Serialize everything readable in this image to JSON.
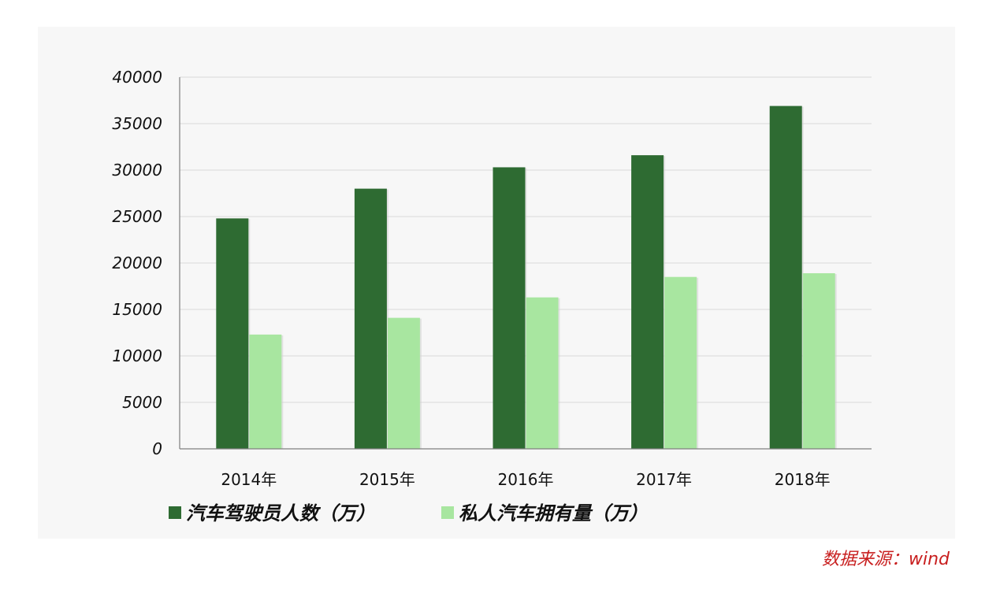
{
  "chart_data": {
    "type": "bar",
    "categories": [
      "2014年",
      "2015年",
      "2016年",
      "2017年",
      "2018年"
    ],
    "series": [
      {
        "name": "汽车驾驶员人数（万）",
        "color": "#2e6b32",
        "values": [
          24800,
          28000,
          30300,
          31600,
          36900
        ]
      },
      {
        "name": "私人汽车拥有量（万）",
        "color": "#a8e6a0",
        "values": [
          12300,
          14100,
          16300,
          18500,
          18900
        ]
      }
    ],
    "ylim": [
      0,
      40000
    ],
    "yticks": [
      "0",
      "5000",
      "10000",
      "15000",
      "20000",
      "25000",
      "30000",
      "35000",
      "40000"
    ],
    "grid": true,
    "legend_placement": "bottom-left"
  },
  "source_label": "数据来源：wind"
}
